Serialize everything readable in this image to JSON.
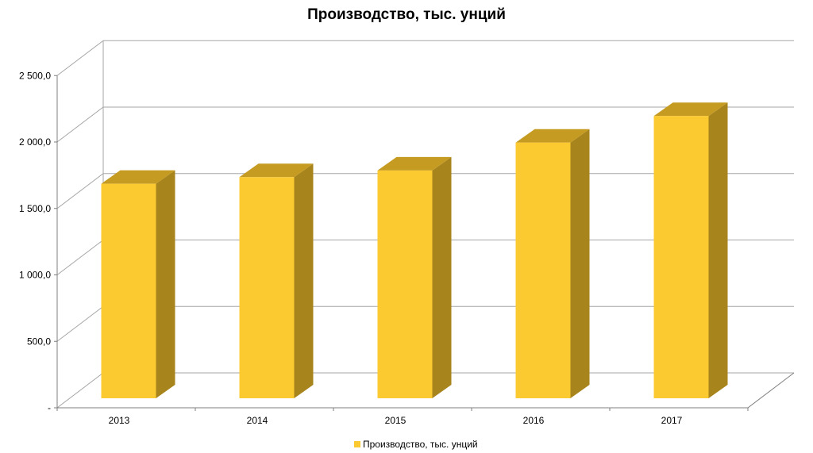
{
  "chart_data": {
    "type": "bar",
    "title": "Производство, тыс. унций",
    "categories": [
      "2013",
      "2014",
      "2015",
      "2016",
      "2017"
    ],
    "series": [
      {
        "name": "Производство, тыс. унций",
        "values": [
          1650,
          1700,
          1750,
          1960,
          2160
        ]
      }
    ],
    "ylim": [
      0,
      2500
    ],
    "yticks": [
      0,
      500,
      1000,
      1500,
      2000,
      2500
    ],
    "ytick_labels": [
      "-",
      "500,0",
      "1 000,0",
      "1 500,0",
      "2 000,0",
      "2 500,0"
    ],
    "grid": true,
    "legend_position": "bottom",
    "colors": {
      "front": "#FBC930",
      "top": "#C69B21",
      "side": "#A7841C",
      "grid": "#a6a6a6",
      "axis": "#7f7f7f"
    }
  }
}
